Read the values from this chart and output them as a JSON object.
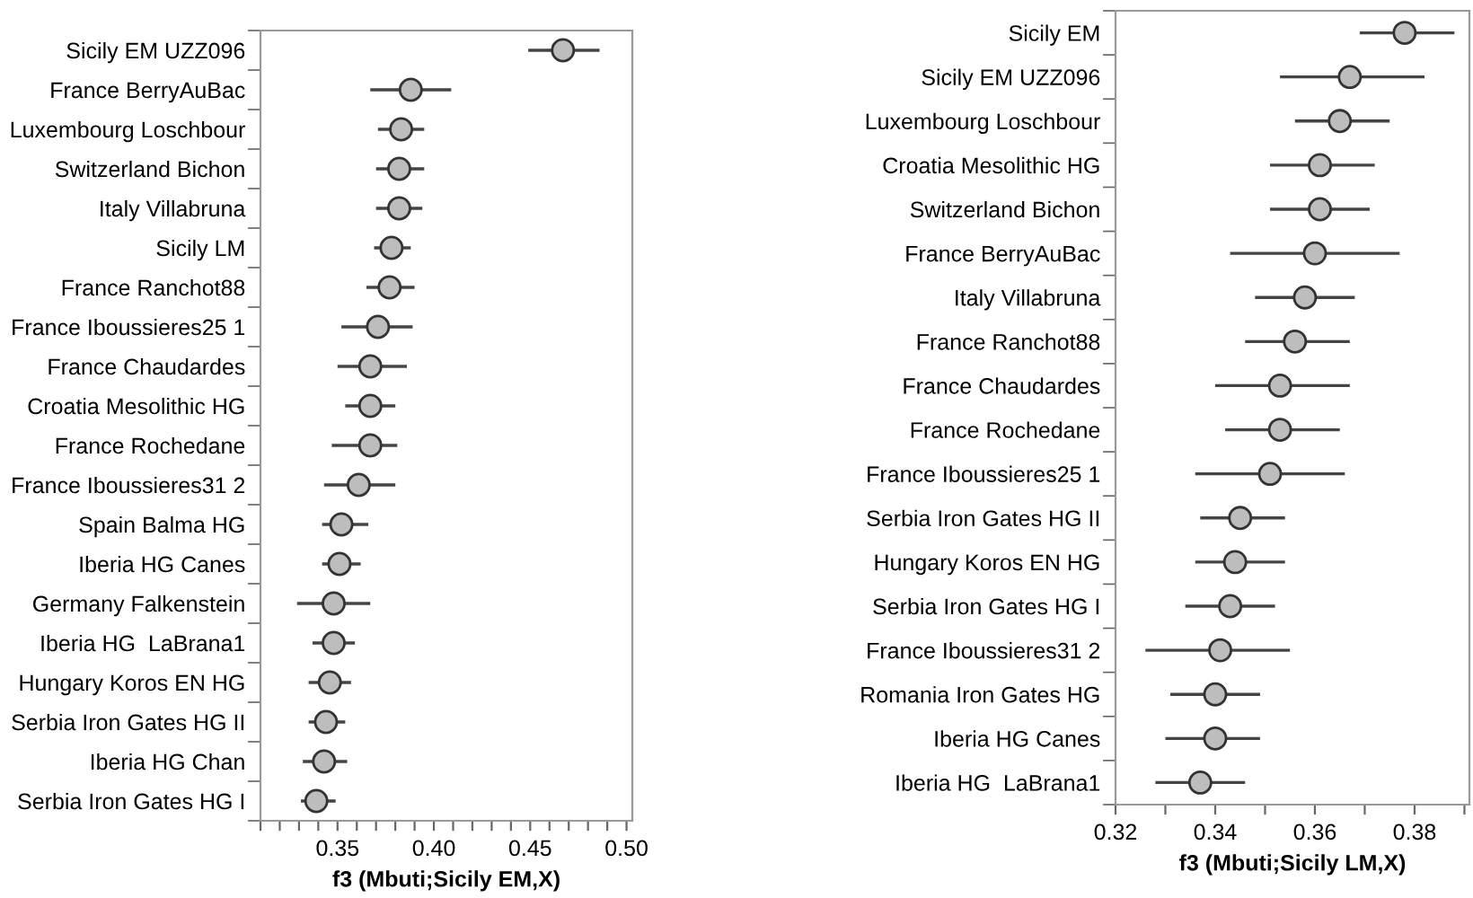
{
  "chart_data": [
    {
      "type": "scatter",
      "orientation": "horizontal",
      "xlabel": "f3 (Mbuti;Sicily EM,X)",
      "marker": "circle",
      "color": "#bdbdbd",
      "grid": false,
      "categories": [
        "Sicily EM UZZ096",
        "France BerryAuBac",
        "Luxembourg Loschbour",
        "Switzerland Bichon",
        "Italy Villabruna",
        "Sicily LM",
        "France Ranchot88",
        "France Iboussieres25 1",
        "France Chaudardes",
        "Croatia Mesolithic HG",
        "France Rochedane",
        "France Iboussieres31 2",
        "Spain Balma HG",
        "Iberia HG Canes",
        "Germany Falkenstein",
        "Iberia HG  LaBrana1",
        "Hungary Koros EN HG",
        "Serbia Iron Gates HG II",
        "Iberia HG Chan",
        "Serbia Iron Gates HG I"
      ],
      "values": [
        0.467,
        0.388,
        0.383,
        0.382,
        0.382,
        0.378,
        0.377,
        0.371,
        0.367,
        0.367,
        0.367,
        0.361,
        0.352,
        0.351,
        0.348,
        0.348,
        0.346,
        0.344,
        0.343,
        0.339
      ],
      "errors": [
        [
          0.449,
          0.486
        ],
        [
          0.367,
          0.409
        ],
        [
          0.371,
          0.395
        ],
        [
          0.37,
          0.395
        ],
        [
          0.37,
          0.394
        ],
        [
          0.369,
          0.388
        ],
        [
          0.365,
          0.39
        ],
        [
          0.352,
          0.389
        ],
        [
          0.35,
          0.386
        ],
        [
          0.354,
          0.38
        ],
        [
          0.347,
          0.381
        ],
        [
          0.343,
          0.38
        ],
        [
          0.342,
          0.366
        ],
        [
          0.342,
          0.362
        ],
        [
          0.329,
          0.367
        ],
        [
          0.337,
          0.359
        ],
        [
          0.335,
          0.357
        ],
        [
          0.335,
          0.354
        ],
        [
          0.332,
          0.355
        ],
        [
          0.331,
          0.349
        ]
      ],
      "xlim": [
        0.31,
        0.503
      ],
      "xticks": [
        {
          "value": 0.31,
          "label": null
        },
        {
          "value": 0.32,
          "label": null
        },
        {
          "value": 0.33,
          "label": null
        },
        {
          "value": 0.34,
          "label": null
        },
        {
          "value": 0.35,
          "label": "0.35"
        },
        {
          "value": 0.36,
          "label": null
        },
        {
          "value": 0.37,
          "label": null
        },
        {
          "value": 0.38,
          "label": null
        },
        {
          "value": 0.39,
          "label": null
        },
        {
          "value": 0.4,
          "label": "0.40"
        },
        {
          "value": 0.41,
          "label": null
        },
        {
          "value": 0.42,
          "label": null
        },
        {
          "value": 0.43,
          "label": null
        },
        {
          "value": 0.44,
          "label": null
        },
        {
          "value": 0.45,
          "label": "0.45"
        },
        {
          "value": 0.46,
          "label": null
        },
        {
          "value": 0.47,
          "label": null
        },
        {
          "value": 0.48,
          "label": null
        },
        {
          "value": 0.49,
          "label": null
        },
        {
          "value": 0.5,
          "label": "0.50"
        }
      ]
    },
    {
      "type": "scatter",
      "orientation": "horizontal",
      "xlabel": "f3 (Mbuti;Sicily LM,X)",
      "marker": "circle",
      "color": "#bdbdbd",
      "grid": false,
      "categories": [
        "Sicily EM",
        "Sicily EM UZZ096",
        "Luxembourg Loschbour",
        "Croatia Mesolithic HG",
        "Switzerland Bichon",
        "France BerryAuBac",
        "Italy Villabruna",
        "France Ranchot88",
        "France Chaudardes",
        "France Rochedane",
        "France Iboussieres25 1",
        "Serbia Iron Gates HG II",
        "Hungary Koros EN HG",
        "Serbia Iron Gates HG I",
        "France Iboussieres31 2",
        "Romania Iron Gates HG",
        "Iberia HG Canes",
        "Iberia HG  LaBrana1"
      ],
      "values": [
        0.378,
        0.367,
        0.365,
        0.361,
        0.361,
        0.36,
        0.358,
        0.356,
        0.353,
        0.353,
        0.351,
        0.345,
        0.344,
        0.343,
        0.341,
        0.34,
        0.34,
        0.337
      ],
      "errors": [
        [
          0.369,
          0.388
        ],
        [
          0.353,
          0.382
        ],
        [
          0.356,
          0.375
        ],
        [
          0.351,
          0.372
        ],
        [
          0.351,
          0.371
        ],
        [
          0.343,
          0.377
        ],
        [
          0.348,
          0.368
        ],
        [
          0.346,
          0.367
        ],
        [
          0.34,
          0.367
        ],
        [
          0.342,
          0.365
        ],
        [
          0.336,
          0.366
        ],
        [
          0.337,
          0.354
        ],
        [
          0.336,
          0.354
        ],
        [
          0.334,
          0.352
        ],
        [
          0.326,
          0.355
        ],
        [
          0.331,
          0.349
        ],
        [
          0.33,
          0.349
        ],
        [
          0.328,
          0.346
        ]
      ],
      "xlim": [
        0.32,
        0.391
      ],
      "xticks": [
        {
          "value": 0.32,
          "label": "0.32"
        },
        {
          "value": 0.33,
          "label": null
        },
        {
          "value": 0.34,
          "label": "0.34"
        },
        {
          "value": 0.35,
          "label": null
        },
        {
          "value": 0.36,
          "label": "0.36"
        },
        {
          "value": 0.37,
          "label": null
        },
        {
          "value": 0.38,
          "label": "0.38"
        },
        {
          "value": 0.39,
          "label": null
        }
      ]
    }
  ]
}
